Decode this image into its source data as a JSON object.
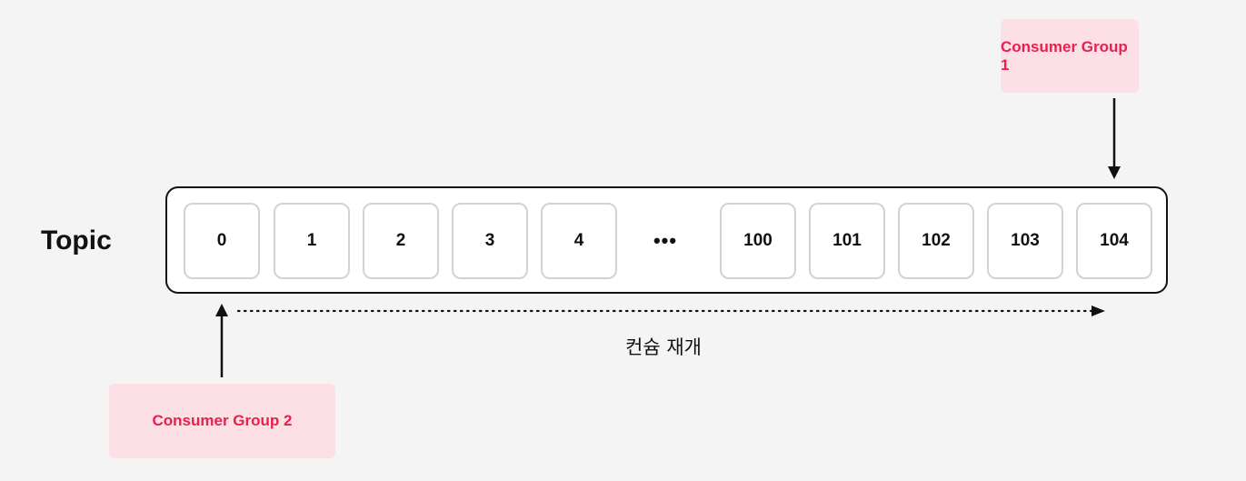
{
  "topic": {
    "label": "Topic",
    "offsets": [
      "0",
      "1",
      "2",
      "3",
      "4",
      "•••",
      "100",
      "101",
      "102",
      "103",
      "104"
    ]
  },
  "groups": {
    "group1": "Consumer Group 1",
    "group2": "Consumer Group 2"
  },
  "resume_label": "컨슘 재개"
}
